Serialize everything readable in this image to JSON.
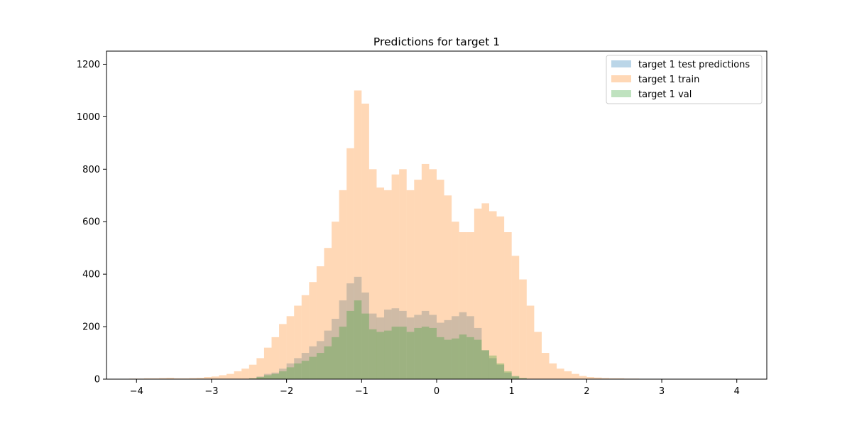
{
  "chart_data": {
    "type": "bar",
    "title": "Predictions for target 1",
    "xlabel": "",
    "ylabel": "",
    "xlim": [
      -4.4,
      4.4
    ],
    "ylim": [
      0,
      1250
    ],
    "x_ticks": [
      -4,
      -3,
      -2,
      -1,
      0,
      1,
      2,
      3,
      4
    ],
    "x_tick_labels": [
      "−4",
      "−3",
      "−2",
      "−1",
      "0",
      "1",
      "2",
      "3",
      "4"
    ],
    "y_ticks": [
      0,
      200,
      400,
      600,
      800,
      1000,
      1200
    ],
    "y_tick_labels": [
      "0",
      "200",
      "400",
      "600",
      "800",
      "1000",
      "1200"
    ],
    "grid": false,
    "legend_position": "top-right",
    "alpha": 0.3,
    "series": [
      {
        "name": "target 1 test predictions",
        "color": "#1f77b4",
        "bin_start": -4.1,
        "bin_width": 0.1,
        "values": [
          0,
          0,
          0,
          0,
          0,
          0,
          0,
          0,
          0,
          0,
          0,
          0,
          0,
          0,
          0,
          0,
          3,
          10,
          20,
          25,
          40,
          60,
          80,
          100,
          125,
          145,
          185,
          230,
          300,
          365,
          390,
          330,
          250,
          235,
          265,
          270,
          260,
          235,
          245,
          260,
          245,
          215,
          225,
          240,
          255,
          240,
          195,
          110,
          80,
          55,
          25,
          10,
          3,
          0,
          0,
          0,
          0,
          0,
          0,
          0,
          0,
          0,
          0,
          0,
          0,
          0,
          0,
          0,
          0,
          0,
          0,
          0,
          0,
          0,
          0,
          0,
          0,
          0,
          0,
          0,
          0,
          0
        ]
      },
      {
        "name": "target 1 train",
        "color": "#ff7f0e",
        "bin_start": -4.1,
        "bin_width": 0.1,
        "values": [
          2,
          2,
          3,
          3,
          4,
          5,
          3,
          3,
          4,
          5,
          8,
          10,
          15,
          20,
          30,
          40,
          55,
          80,
          120,
          160,
          210,
          240,
          280,
          320,
          370,
          430,
          500,
          600,
          720,
          880,
          1100,
          1050,
          800,
          730,
          720,
          780,
          800,
          720,
          760,
          820,
          800,
          760,
          700,
          600,
          560,
          560,
          650,
          670,
          640,
          620,
          560,
          470,
          380,
          280,
          180,
          100,
          60,
          40,
          30,
          20,
          12,
          8,
          6,
          4,
          3,
          3,
          2,
          2,
          1,
          1,
          1,
          1,
          0,
          0,
          0,
          0,
          0,
          0,
          0,
          0,
          0,
          0
        ]
      },
      {
        "name": "target 1 val",
        "color": "#2ca02c",
        "bin_start": -4.1,
        "bin_width": 0.1,
        "values": [
          0,
          0,
          0,
          0,
          0,
          0,
          0,
          0,
          0,
          0,
          0,
          0,
          0,
          0,
          0,
          0,
          3,
          8,
          15,
          20,
          30,
          45,
          60,
          70,
          85,
          100,
          125,
          160,
          200,
          260,
          300,
          250,
          190,
          180,
          185,
          200,
          200,
          180,
          195,
          200,
          195,
          160,
          150,
          155,
          170,
          160,
          150,
          110,
          90,
          60,
          30,
          12,
          4,
          0,
          0,
          0,
          0,
          0,
          0,
          0,
          0,
          0,
          0,
          0,
          0,
          0,
          0,
          0,
          0,
          0,
          0,
          0,
          0,
          0,
          0,
          0,
          0,
          0,
          0,
          0,
          0,
          0
        ]
      }
    ]
  }
}
